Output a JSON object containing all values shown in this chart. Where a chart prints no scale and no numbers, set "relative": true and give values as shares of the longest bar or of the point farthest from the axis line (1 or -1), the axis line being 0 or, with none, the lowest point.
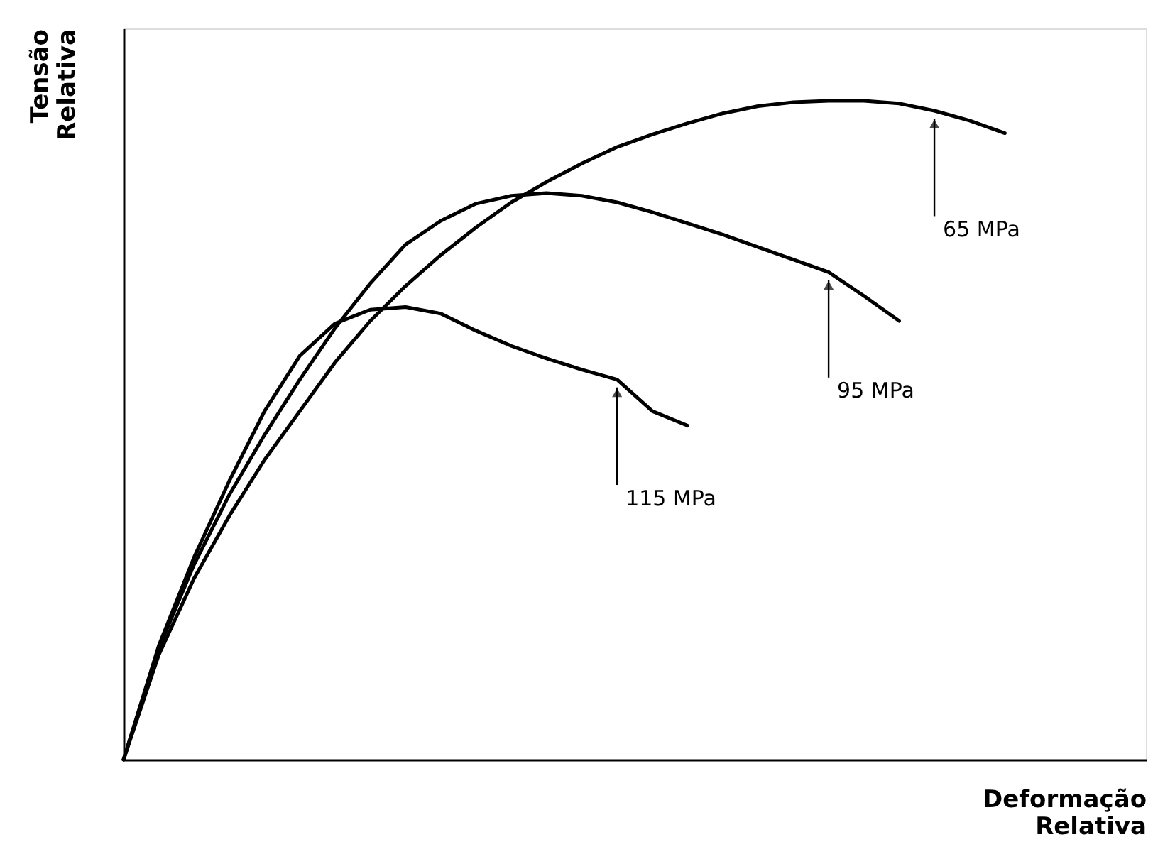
{
  "chart_data": {
    "type": "line",
    "relative": true,
    "xlabel": "Deformação Relativa",
    "ylabel": "Tensão Relativa",
    "categories": [
      null,
      null,
      null,
      null,
      null,
      null,
      null,
      null,
      null,
      null,
      null,
      null,
      null,
      null,
      null,
      null,
      null,
      null,
      null,
      null,
      null,
      null,
      null,
      null,
      null,
      null,
      null,
      null,
      null,
      null
    ],
    "series": [
      {
        "color": "#000000",
        "values": [
          0,
          0.159,
          0.275,
          0.37,
          0.455,
          0.529,
          0.603,
          0.666,
          0.719,
          0.766,
          0.808,
          0.846,
          0.877,
          0.905,
          0.93,
          0.949,
          0.966,
          0.981,
          0.992,
          0.998,
          1.0,
          1.0,
          0.996,
          0.985,
          0.97,
          0.951,
          null,
          null,
          null,
          null
        ]
      },
      {
        "color": "#000000",
        "values": [
          0,
          0.169,
          0.296,
          0.402,
          0.493,
          0.577,
          0.655,
          0.723,
          0.782,
          0.818,
          0.844,
          0.856,
          0.86,
          0.856,
          0.846,
          0.831,
          0.814,
          0.797,
          0.778,
          0.759,
          0.74,
          0.704,
          0.666,
          null,
          null,
          null,
          null,
          null,
          null,
          null
        ]
      },
      {
        "color": "#000000",
        "values": [
          0,
          0.173,
          0.307,
          0.423,
          0.529,
          0.613,
          0.662,
          0.683,
          0.687,
          0.677,
          0.651,
          0.628,
          0.609,
          0.592,
          0.577,
          0.529,
          0.507,
          null,
          null,
          null,
          null,
          null,
          null,
          null,
          null,
          null,
          null,
          null,
          null,
          null
        ]
      }
    ],
    "annotations": [
      "65 MPa",
      "95 MPa",
      "115 MPa"
    ],
    "legend": false,
    "tick_labels": false,
    "grid": false
  }
}
